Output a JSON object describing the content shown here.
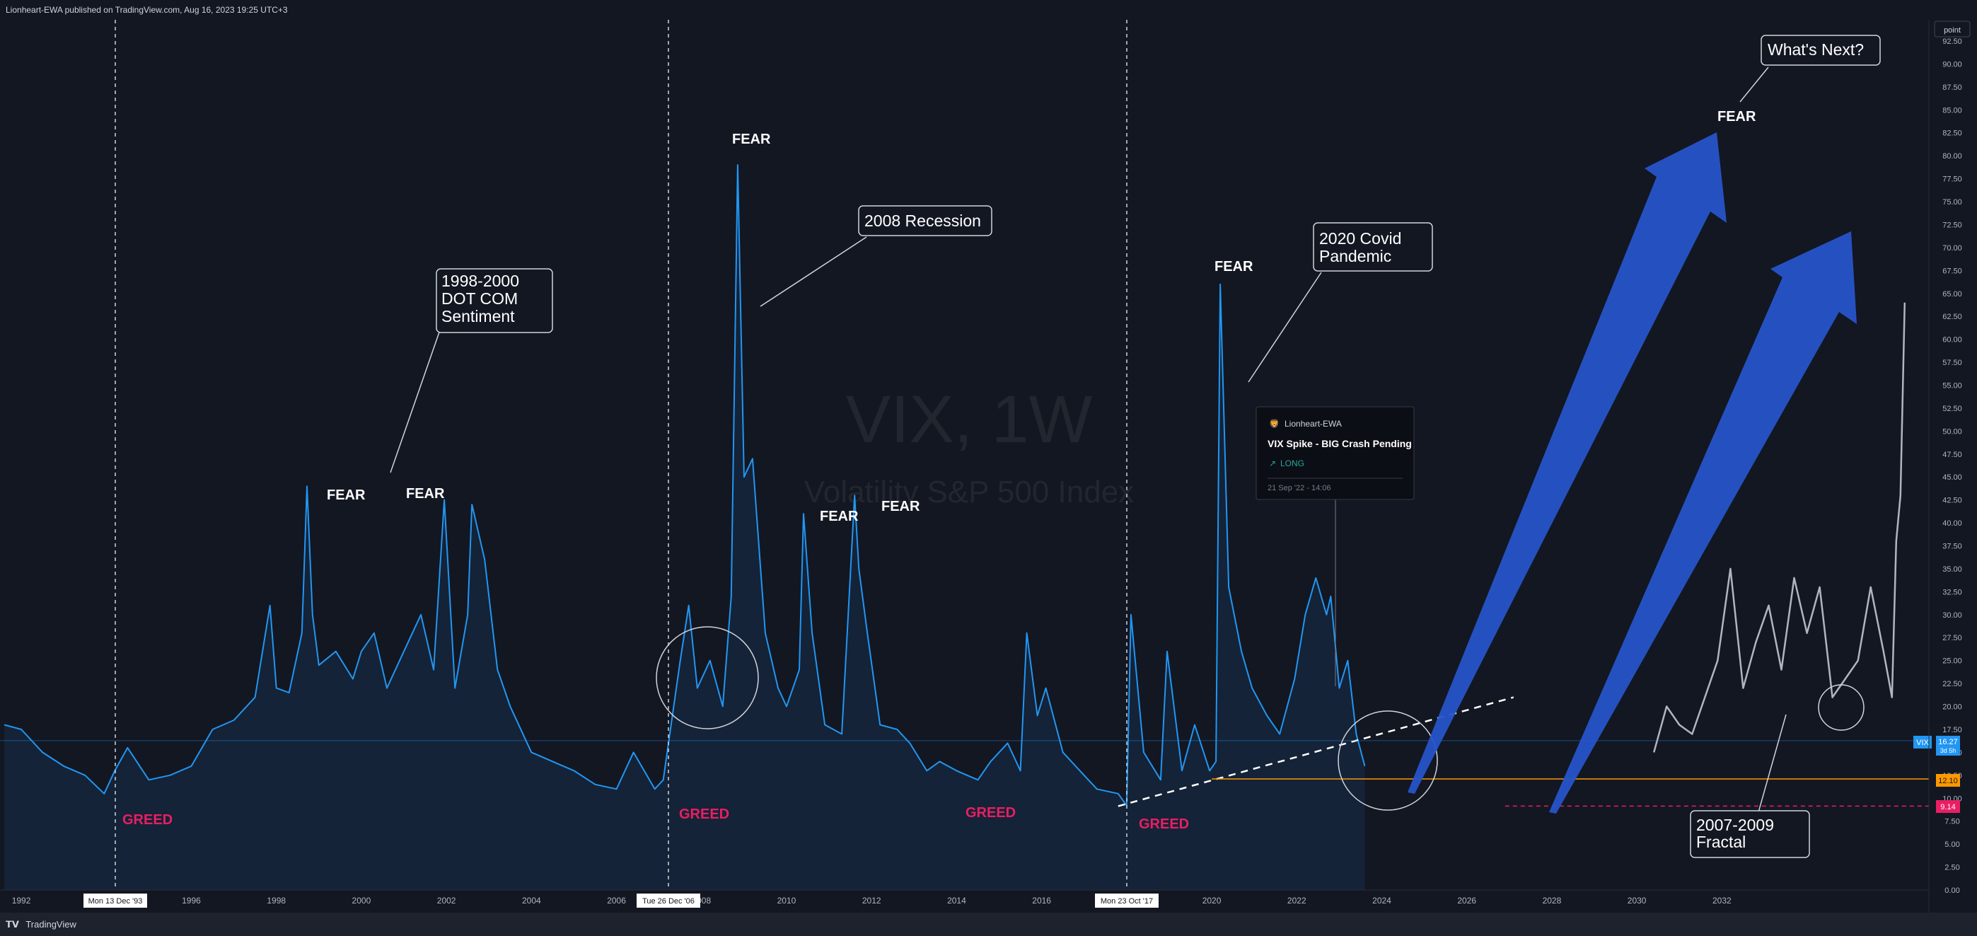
{
  "header": {
    "published": "Lionheart-EWA published on TradingView.com, Aug 16, 2023 19:25 UTC+3"
  },
  "watermark": {
    "symbol": "VIX, 1W",
    "name": "Volatility S&P 500 Index"
  },
  "footer": {
    "logo": "𝗧𝗩",
    "brand": "TradingView"
  },
  "axis_button": "point",
  "price_tags": {
    "vix_label": "VIX",
    "vix_value": "16.27",
    "vix_countdown": "3d 5h",
    "orange_value": "12.10",
    "magenta_value": "9.14"
  },
  "date_markers": [
    "Mon 13 Dec '93",
    "Tue 26 Dec '06",
    "Mon 23 Oct '17"
  ],
  "idea_card": {
    "author": "Lionheart-EWA",
    "title": "VIX Spike - BIG Crash Pending",
    "direction": "LONG",
    "date": "21 Sep '22 - 14:06"
  },
  "annotations": {
    "fear_labels": [
      "FEAR",
      "FEAR",
      "FEAR",
      "FEAR",
      "FEAR",
      "FEAR",
      "FEAR"
    ],
    "greed_labels": [
      "GREED",
      "GREED",
      "GREED",
      "GREED"
    ],
    "callouts": [
      {
        "lines": [
          "1998-2000",
          "DOT COM",
          "Sentiment"
        ]
      },
      {
        "lines": [
          "2008 Recession"
        ]
      },
      {
        "lines": [
          "2020 Covid",
          "Pandemic"
        ]
      },
      {
        "lines": [
          "What's Next?"
        ]
      },
      {
        "lines": [
          "2007-2009",
          "Fractal"
        ]
      }
    ]
  },
  "colors": {
    "background": "#131722",
    "series": "#2196f3",
    "fractal": "#b2b5be",
    "fear": "#ffffff",
    "greed": "#e91e63",
    "arrow": "#2654c9",
    "orange_line": "#ff9800",
    "magenta_line": "#e91e63"
  },
  "chart_data": {
    "type": "line",
    "title": "VIX, 1W",
    "subtitle": "Volatility S&P 500 Index",
    "x_ticks": [
      "1992",
      "1996",
      "1998",
      "2000",
      "2002",
      "2004",
      "2006",
      "2008",
      "2010",
      "2012",
      "2014",
      "2016",
      "2020",
      "2022",
      "2024",
      "2026",
      "2028",
      "2030",
      "2032"
    ],
    "y_ticks": [
      "0.00",
      "2.50",
      "5.00",
      "7.50",
      "10.00",
      "12.50",
      "15.00",
      "17.50",
      "20.00",
      "22.50",
      "25.00",
      "27.50",
      "30.00",
      "32.50",
      "35.00",
      "37.50",
      "40.00",
      "42.50",
      "45.00",
      "47.50",
      "50.00",
      "52.50",
      "55.00",
      "57.50",
      "60.00",
      "62.50",
      "65.00",
      "67.50",
      "70.00",
      "72.50",
      "75.00",
      "77.50",
      "80.00",
      "82.50",
      "85.00",
      "87.50",
      "90.00",
      "92.50"
    ],
    "ylim": [
      0,
      92.5
    ],
    "xlim": [
      1991.5,
      2038.0
    ],
    "series": [
      {
        "name": "VIX",
        "x": [
          1991.6,
          1992.0,
          1992.5,
          1993.0,
          1993.5,
          1993.95,
          1994.2,
          1994.5,
          1995.0,
          1995.5,
          1996.0,
          1996.5,
          1997.0,
          1997.5,
          1997.85,
          1998.0,
          1998.3,
          1998.6,
          1998.72,
          1998.85,
          1999.0,
          1999.4,
          1999.8,
          2000.0,
          2000.3,
          2000.6,
          2001.0,
          2001.4,
          2001.7,
          2001.95,
          2002.2,
          2002.5,
          2002.6,
          2002.9,
          2003.2,
          2003.5,
          2004.0,
          2004.5,
          2005.0,
          2005.5,
          2006.0,
          2006.4,
          2006.9,
          2007.1,
          2007.5,
          2007.7,
          2007.9,
          2008.2,
          2008.5,
          2008.7,
          2008.85,
          2009.0,
          2009.2,
          2009.5,
          2009.8,
          2010.0,
          2010.3,
          2010.4,
          2010.6,
          2010.9,
          2011.3,
          2011.6,
          2011.7,
          2011.9,
          2012.2,
          2012.6,
          2012.9,
          2013.3,
          2013.6,
          2014.0,
          2014.5,
          2014.8,
          2015.2,
          2015.5,
          2015.65,
          2015.9,
          2016.1,
          2016.5,
          2016.9,
          2017.3,
          2017.8,
          2018.0,
          2018.1,
          2018.4,
          2018.8,
          2018.95,
          2019.3,
          2019.6,
          2019.95,
          2020.1,
          2020.2,
          2020.4,
          2020.7,
          2020.95,
          2021.3,
          2021.6,
          2021.95,
          2022.2,
          2022.45,
          2022.7,
          2022.8,
          2023.0,
          2023.2,
          2023.4,
          2023.6
        ],
        "values": [
          18.0,
          17.5,
          15.0,
          13.5,
          12.5,
          10.5,
          13.0,
          15.5,
          12.0,
          12.5,
          13.5,
          17.5,
          18.5,
          21.0,
          31.0,
          22.0,
          21.5,
          28.0,
          44.0,
          30.0,
          24.5,
          26.0,
          23.0,
          26.0,
          28.0,
          22.0,
          26.0,
          30.0,
          24.0,
          42.5,
          22.0,
          30.0,
          42.0,
          36.0,
          24.0,
          20.0,
          15.0,
          14.0,
          13.0,
          11.5,
          11.0,
          15.0,
          11.0,
          12.0,
          25.0,
          31.0,
          22.0,
          25.0,
          20.0,
          32.0,
          79.0,
          45.0,
          47.0,
          28.0,
          22.0,
          20.0,
          24.0,
          41.0,
          28.0,
          18.0,
          17.0,
          43.0,
          35.0,
          28.0,
          18.0,
          17.5,
          16.0,
          13.0,
          14.0,
          13.0,
          12.0,
          14.0,
          16.0,
          13.0,
          28.0,
          19.0,
          22.0,
          15.0,
          13.0,
          11.0,
          10.5,
          9.2,
          30.0,
          15.0,
          12.0,
          26.0,
          13.0,
          18.0,
          13.0,
          14.0,
          66.0,
          33.0,
          26.0,
          22.0,
          19.0,
          17.0,
          23.0,
          30.0,
          34.0,
          30.0,
          32.0,
          22.0,
          25.0,
          17.0,
          13.5
        ]
      },
      {
        "name": "Fractal",
        "x": [
          2030.4,
          2030.7,
          2031.0,
          2031.3,
          2031.6,
          2031.9,
          2032.2,
          2032.5,
          2032.8,
          2033.1,
          2033.4,
          2033.7,
          2034.0,
          2034.3,
          2034.6,
          2034.9,
          2035.2,
          2035.5,
          2035.8,
          2036.0,
          2036.1,
          2036.2,
          2036.3
        ],
        "values": [
          15.0,
          20.0,
          18.0,
          17.0,
          21.0,
          25.0,
          35.0,
          22.0,
          27.0,
          31.0,
          24.0,
          34.0,
          28.0,
          33.0,
          21.0,
          23.0,
          25.0,
          33.0,
          26.0,
          21.0,
          38.0,
          43.0,
          64.0
        ]
      }
    ],
    "trendline": {
      "x": [
        2017.8,
        2027.1
      ],
      "values": [
        9.14,
        21.0
      ]
    },
    "hlines": [
      {
        "label": "12.10",
        "value": 12.1
      },
      {
        "label": "9.14",
        "value": 9.14
      },
      {
        "label": "16.27",
        "value": 16.27
      }
    ],
    "grid": false,
    "legend": "none"
  }
}
